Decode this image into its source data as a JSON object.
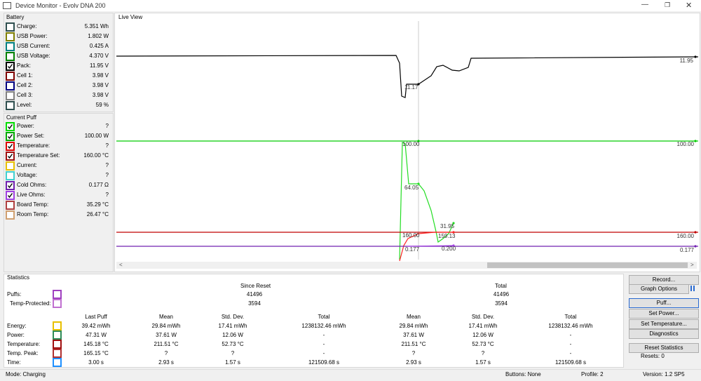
{
  "window": {
    "title": "Device Monitor - Evolv DNA 200"
  },
  "battery": {
    "title": "Battery",
    "rows": [
      {
        "label": "Charge:",
        "value": "5.351 Wh",
        "color": "#2f4f4f",
        "checked": false
      },
      {
        "label": "USB Power:",
        "value": "1.802 W",
        "color": "#808000",
        "checked": false
      },
      {
        "label": "USB Current:",
        "value": "0.425 A",
        "color": "#008080",
        "checked": false
      },
      {
        "label": "USB Voltage:",
        "value": "4.370 V",
        "color": "#008000",
        "checked": false
      },
      {
        "label": "Pack:",
        "value": "11.95 V",
        "color": "#000000",
        "checked": true
      },
      {
        "label": "Cell 1:",
        "value": "3.98 V",
        "color": "#800000",
        "checked": false
      },
      {
        "label": "Cell 2:",
        "value": "3.98 V",
        "color": "#000080",
        "checked": false
      },
      {
        "label": "Cell 3:",
        "value": "3.98 V",
        "color": "#808080",
        "checked": false
      },
      {
        "label": "Level:",
        "value": "59 %",
        "color": "#2f4f4f",
        "checked": false
      }
    ]
  },
  "current_puff": {
    "title": "Current Puff",
    "rows": [
      {
        "label": "Power:",
        "value": "?",
        "color": "#00dd00",
        "checked": true
      },
      {
        "label": "Power Set:",
        "value": "100.00 W",
        "color": "#00aa00",
        "checked": true
      },
      {
        "label": "Temperature:",
        "value": "?",
        "color": "#dd0000",
        "checked": true
      },
      {
        "label": "Temperature Set:",
        "value": "160.00 °C",
        "color": "#a01010",
        "checked": true
      },
      {
        "label": "Current:",
        "value": "?",
        "color": "#e8c000",
        "checked": false
      },
      {
        "label": "Voltage:",
        "value": "?",
        "color": "#40d0d0",
        "checked": false
      },
      {
        "label": "Cold Ohms:",
        "value": "0.177 Ω",
        "color": "#7020b0",
        "checked": true
      },
      {
        "label": "Live Ohms:",
        "value": "?",
        "color": "#a040e0",
        "checked": true
      },
      {
        "label": "Board Temp:",
        "value": "35.29 °C",
        "color": "#b04040",
        "checked": false
      },
      {
        "label": "Room Temp:",
        "value": "26.47 °C",
        "color": "#d0a070",
        "checked": false
      }
    ]
  },
  "live_view": {
    "title": "Live View",
    "annotations": [
      "11.95",
      "11.17",
      "100.00",
      "100.00",
      "64.05",
      "31.95",
      "159.13",
      "160.00",
      "160.00",
      "0.200",
      "0.177",
      "0.177"
    ]
  },
  "statistics": {
    "title": "Statistics",
    "since_reset": "Since Reset",
    "total": "Total",
    "puff_rows": [
      {
        "label": "Puffs:",
        "since_reset": "41496",
        "total": "41496",
        "color": "#a040c0"
      },
      {
        "label": "Temp-Protected:",
        "since_reset": "3594",
        "total": "3594",
        "color": "#c070d0"
      }
    ],
    "headers": [
      "Last Puff",
      "Mean",
      "Std. Dev.",
      "Total",
      "Mean",
      "Std. Dev.",
      "Total"
    ],
    "rows": [
      {
        "label": "Energy:",
        "color": "#e8c000",
        "cells": [
          "39.42 mWh",
          "29.84 mWh",
          "17.41 mWh",
          "1238132.46 mWh",
          "29.84 mWh",
          "17.41 mWh",
          "1238132.46 mWh"
        ]
      },
      {
        "label": "Power:",
        "color": "#2e8b57",
        "cells": [
          "47.31 W",
          "37.61 W",
          "12.06 W",
          "-",
          "37.61 W",
          "12.06 W",
          "-"
        ]
      },
      {
        "label": "Temperature:",
        "color": "#a01010",
        "cells": [
          "145.18 °C",
          "211.51 °C",
          "52.73 °C",
          "-",
          "211.51 °C",
          "52.73 °C",
          "-"
        ]
      },
      {
        "label": "Temp. Peak:",
        "color": "#b03030",
        "cells": [
          "165.15 °C",
          "?",
          "?",
          "-",
          "?",
          "?",
          "-"
        ]
      },
      {
        "label": "Time:",
        "color": "#1e90ff",
        "cells": [
          "3.00 s",
          "2.93 s",
          "1.57 s",
          "121509.68 s",
          "2.93 s",
          "1.57 s",
          "121509.68 s"
        ]
      }
    ]
  },
  "buttons": [
    "Record...",
    "Graph Options",
    "Puff...",
    "Set Power...",
    "Set Temperature...",
    "Diagnostics",
    "Reset Statistics"
  ],
  "resets": "Resets: 0",
  "status": {
    "mode": "Mode: Charging",
    "buttons": "Buttons: None",
    "profile": "Profile: 2",
    "version": "Version: 1.2 SP5"
  }
}
